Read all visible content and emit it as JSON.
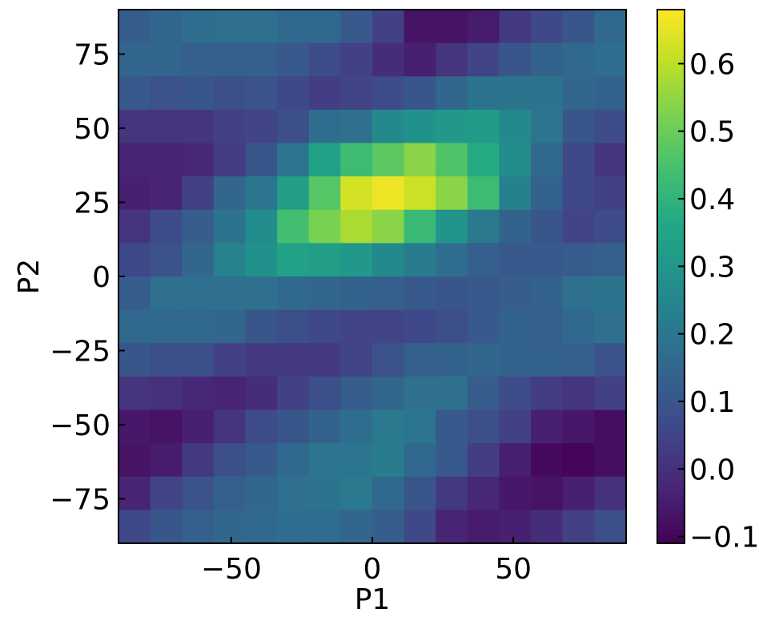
{
  "chart_data": {
    "type": "heatmap",
    "title": "",
    "xlabel": "P1",
    "ylabel": "P2",
    "xlim": [
      -90,
      90
    ],
    "ylim": [
      -90,
      90
    ],
    "xticks": [
      -50,
      0,
      50
    ],
    "xtick_labels": [
      "−50",
      "0",
      "50"
    ],
    "yticks": [
      -75,
      -50,
      -25,
      0,
      25,
      50,
      75
    ],
    "ytick_labels": [
      "−75",
      "−50",
      "−25",
      "0",
      "25",
      "50",
      "75"
    ],
    "grid": false,
    "colormap": "viridis",
    "colorbar": {
      "range": [
        -0.11,
        0.68
      ],
      "ticks": [
        -0.1,
        0.0,
        0.1,
        0.2,
        0.3,
        0.4,
        0.5,
        0.6
      ],
      "tick_labels": [
        "−0.1",
        "0.0",
        "0.1",
        "0.2",
        "0.3",
        "0.4",
        "0.5",
        "0.6"
      ]
    },
    "x_bins": {
      "start": -90,
      "step": 11.25,
      "count": 16
    },
    "y_bins": {
      "start": 90,
      "step": -11.25,
      "count": 16
    },
    "values": [
      [
        0.12,
        0.15,
        0.17,
        0.18,
        0.18,
        0.16,
        0.16,
        0.11,
        0.04,
        -0.07,
        -0.07,
        -0.05,
        0.02,
        0.06,
        0.1,
        0.16
      ],
      [
        0.15,
        0.15,
        0.13,
        0.13,
        0.13,
        0.11,
        0.07,
        0.04,
        -0.01,
        -0.04,
        0.01,
        0.05,
        0.1,
        0.14,
        0.16,
        0.17
      ],
      [
        0.11,
        0.09,
        0.1,
        0.08,
        0.09,
        0.06,
        0.03,
        0.05,
        0.07,
        0.1,
        0.15,
        0.19,
        0.19,
        0.19,
        0.15,
        0.14
      ],
      [
        0.01,
        0.01,
        0.01,
        0.04,
        0.05,
        0.08,
        0.17,
        0.18,
        0.26,
        0.29,
        0.31,
        0.32,
        0.26,
        0.2,
        0.1,
        0.07
      ],
      [
        -0.03,
        -0.03,
        -0.02,
        0.03,
        0.1,
        0.2,
        0.34,
        0.43,
        0.48,
        0.54,
        0.46,
        0.37,
        0.27,
        0.16,
        0.06,
        0.01
      ],
      [
        -0.04,
        -0.03,
        0.04,
        0.15,
        0.2,
        0.33,
        0.47,
        0.63,
        0.66,
        0.62,
        0.54,
        0.43,
        0.23,
        0.14,
        0.06,
        0.04
      ],
      [
        0.01,
        0.07,
        0.12,
        0.19,
        0.27,
        0.44,
        0.52,
        0.58,
        0.54,
        0.42,
        0.3,
        0.21,
        0.14,
        0.1,
        0.05,
        0.07
      ],
      [
        0.06,
        0.09,
        0.15,
        0.24,
        0.29,
        0.34,
        0.33,
        0.31,
        0.26,
        0.22,
        0.17,
        0.13,
        0.11,
        0.11,
        0.12,
        0.13
      ],
      [
        0.12,
        0.18,
        0.18,
        0.18,
        0.18,
        0.16,
        0.15,
        0.14,
        0.13,
        0.11,
        0.1,
        0.11,
        0.12,
        0.14,
        0.18,
        0.19
      ],
      [
        0.16,
        0.16,
        0.16,
        0.15,
        0.1,
        0.08,
        0.06,
        0.05,
        0.05,
        0.06,
        0.08,
        0.11,
        0.14,
        0.13,
        0.16,
        0.18
      ],
      [
        0.1,
        0.08,
        0.08,
        0.04,
        0.02,
        0.02,
        0.02,
        0.05,
        0.09,
        0.13,
        0.14,
        0.15,
        0.14,
        0.14,
        0.13,
        0.09
      ],
      [
        0.01,
        0.0,
        -0.02,
        -0.03,
        -0.01,
        0.04,
        0.08,
        0.12,
        0.15,
        0.18,
        0.18,
        0.12,
        0.07,
        0.03,
        0.01,
        0.04
      ],
      [
        -0.06,
        -0.07,
        -0.04,
        0.01,
        0.07,
        0.1,
        0.14,
        0.17,
        0.21,
        0.2,
        0.11,
        0.08,
        0.04,
        -0.04,
        -0.06,
        -0.08
      ],
      [
        -0.07,
        -0.05,
        0.02,
        0.08,
        0.11,
        0.16,
        0.2,
        0.2,
        0.22,
        0.16,
        0.11,
        0.03,
        -0.04,
        -0.09,
        -0.1,
        -0.08
      ],
      [
        -0.03,
        0.05,
        0.09,
        0.13,
        0.15,
        0.18,
        0.19,
        0.21,
        0.16,
        0.1,
        0.02,
        -0.02,
        -0.06,
        -0.07,
        -0.04,
        0.0
      ],
      [
        0.06,
        0.1,
        0.13,
        0.15,
        0.16,
        0.17,
        0.17,
        0.15,
        0.12,
        0.06,
        -0.03,
        -0.05,
        -0.04,
        -0.01,
        0.04,
        0.08
      ]
    ]
  }
}
